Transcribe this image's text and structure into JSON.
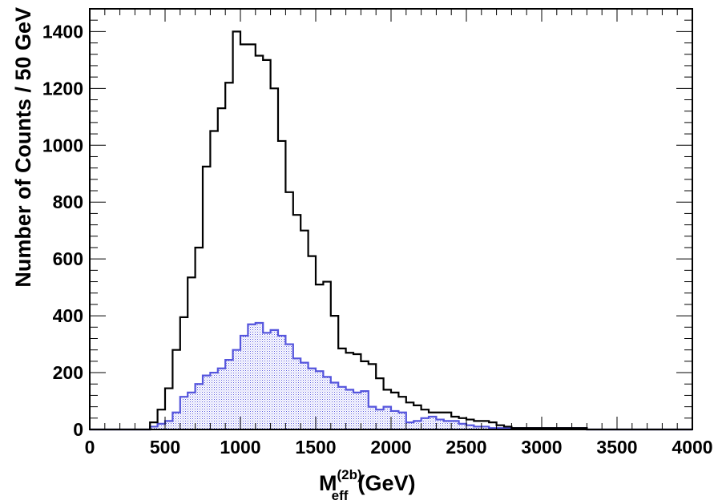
{
  "chart_data": {
    "type": "histogram",
    "title": "",
    "xlabel": {
      "main": "M",
      "superscript": "(2b)",
      "subscript": "eff",
      "unit": "(GeV)"
    },
    "ylabel": "Number of Counts / 50 GeV",
    "xlim": [
      0,
      4000
    ],
    "ylim": [
      0,
      1480
    ],
    "bin_width": 50,
    "grid": false,
    "legend": "none",
    "x_ticks": [
      {
        "value": 0,
        "label": "0"
      },
      {
        "value": 500,
        "label": "500"
      },
      {
        "value": 1000,
        "label": "1000"
      },
      {
        "value": 1500,
        "label": "1500"
      },
      {
        "value": 2000,
        "label": "2000"
      },
      {
        "value": 2500,
        "label": "2500"
      },
      {
        "value": 3000,
        "label": "3000"
      },
      {
        "value": 3500,
        "label": "3500"
      },
      {
        "value": 4000,
        "label": "4000"
      }
    ],
    "y_ticks": [
      {
        "value": 0,
        "label": "0"
      },
      {
        "value": 200,
        "label": "200"
      },
      {
        "value": 400,
        "label": "400"
      },
      {
        "value": 600,
        "label": "600"
      },
      {
        "value": 800,
        "label": "800"
      },
      {
        "value": 1000,
        "label": "1000"
      },
      {
        "value": 1200,
        "label": "1200"
      },
      {
        "value": 1400,
        "label": "1400"
      }
    ],
    "series": [
      {
        "color": "#000000",
        "fill": "none",
        "bins_start": 0,
        "values": [
          0,
          0,
          0,
          0,
          0,
          0,
          0,
          0,
          25,
          70,
          145,
          280,
          395,
          535,
          640,
          925,
          1050,
          1130,
          1220,
          1400,
          1355,
          1355,
          1315,
          1300,
          1200,
          1015,
          835,
          755,
          700,
          610,
          510,
          520,
          400,
          285,
          270,
          265,
          240,
          230,
          180,
          140,
          130,
          115,
          95,
          85,
          70,
          60,
          60,
          60,
          45,
          40,
          35,
          30,
          30,
          25,
          15,
          10,
          5,
          5,
          5,
          5,
          5,
          5,
          5,
          5,
          5,
          5,
          0,
          0,
          0,
          0,
          0,
          0,
          0,
          0,
          0,
          0,
          0,
          0,
          0,
          0
        ]
      },
      {
        "color": "#5555dd",
        "fill": "hatched",
        "bins_start": 0,
        "values": [
          0,
          0,
          0,
          0,
          0,
          0,
          0,
          0,
          10,
          20,
          30,
          60,
          115,
          130,
          160,
          190,
          200,
          215,
          245,
          280,
          330,
          370,
          375,
          340,
          350,
          330,
          300,
          250,
          235,
          215,
          205,
          185,
          165,
          150,
          140,
          130,
          135,
          80,
          70,
          80,
          65,
          60,
          25,
          30,
          40,
          45,
          35,
          30,
          30,
          20,
          15,
          10,
          10,
          5,
          5,
          5,
          5,
          5,
          5,
          5,
          5,
          5,
          5,
          5,
          5,
          5,
          0,
          0,
          0,
          0,
          0,
          0,
          0,
          0,
          0,
          0,
          0,
          0,
          0,
          0
        ]
      }
    ]
  }
}
